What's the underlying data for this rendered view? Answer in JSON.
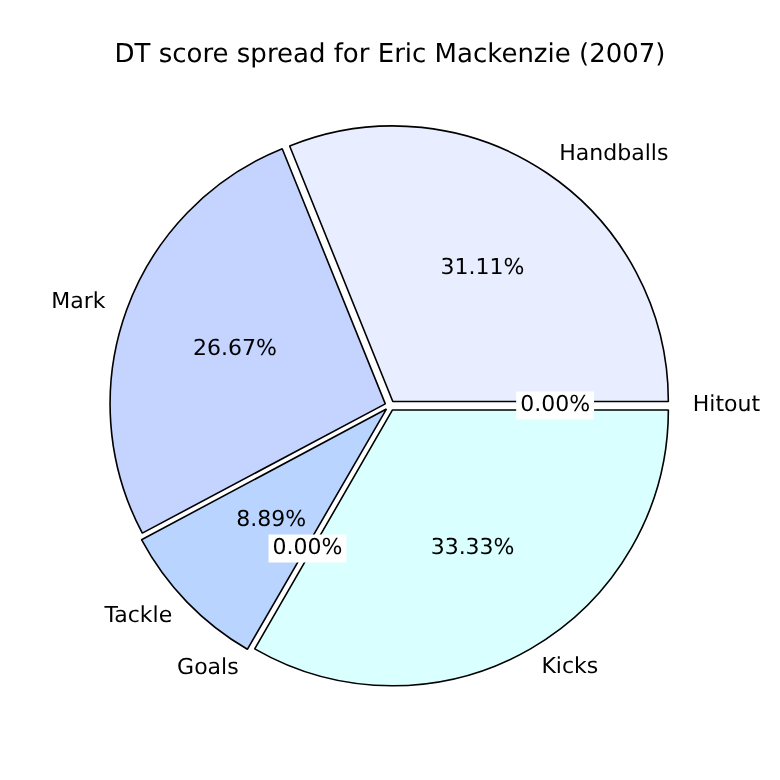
{
  "chart_data": {
    "type": "pie",
    "title": "DT score spread for Eric Mackenzie (2007)",
    "categories": [
      "Handballs",
      "Mark",
      "Tackle",
      "Goals",
      "Kicks",
      "Hitout"
    ],
    "values": [
      31.11,
      26.67,
      8.89,
      0,
      33.33,
      0
    ],
    "colors": [
      "#e8eeff",
      "#c4d4ff",
      "#b8d4ff",
      "#c8e8ff",
      "#d9ffff",
      "#eaf4ff"
    ],
    "value_labels": [
      "31.11%",
      "26.67%",
      "8.89%",
      "0.00%",
      "33.33%",
      "0.00%"
    ],
    "legend": false
  }
}
